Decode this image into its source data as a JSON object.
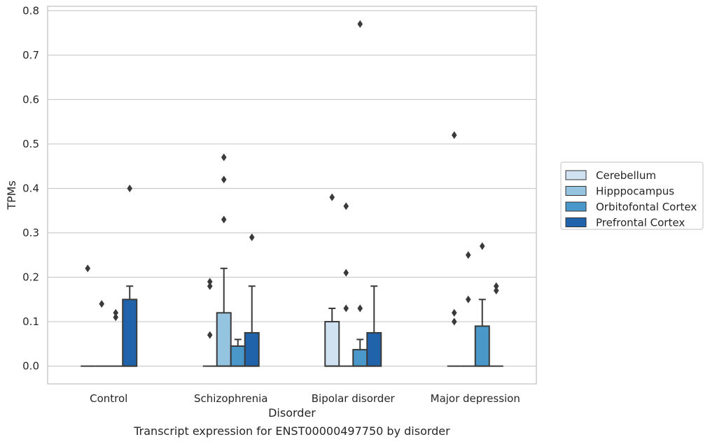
{
  "chart_data": {
    "type": "box",
    "xlabel": "Disorder",
    "ylabel": "TPMs",
    "caption": "Transcript expression for ENST00000497750 by disorder",
    "ylim": [
      -0.04,
      0.81
    ],
    "yticks": [
      0.0,
      0.1,
      0.2,
      0.3,
      0.4,
      0.5,
      0.6,
      0.7,
      0.8
    ],
    "ytick_labels": [
      "0.0",
      "0.1",
      "0.2",
      "0.3",
      "0.4",
      "0.5",
      "0.6",
      "0.7",
      "0.8"
    ],
    "grid": "horizontal",
    "legend_position": "right",
    "categories": [
      "Control",
      "Schizophrenia",
      "Bipolar disorder",
      "Major depression"
    ],
    "series": [
      {
        "name": "Cerebellum",
        "color": "#d0e1f2",
        "boxes": [
          {
            "q1": 0,
            "median": 0,
            "q3": 0,
            "whisker_low": 0,
            "whisker_high": 0,
            "outliers": [
              0.22
            ]
          },
          {
            "q1": 0,
            "median": 0,
            "q3": 0,
            "whisker_low": 0,
            "whisker_high": 0,
            "outliers": [
              0.07,
              0.18,
              0.19
            ]
          },
          {
            "q1": 0,
            "median": 0,
            "q3": 0.1,
            "whisker_low": 0,
            "whisker_high": 0.13,
            "outliers": [
              0.38
            ]
          },
          {
            "q1": 0,
            "median": 0,
            "q3": 0,
            "whisker_low": 0,
            "whisker_high": 0,
            "outliers": [
              0.1,
              0.12,
              0.52
            ]
          }
        ]
      },
      {
        "name": "Hipppocampus",
        "color": "#94c4df",
        "boxes": [
          {
            "q1": 0,
            "median": 0,
            "q3": 0,
            "whisker_low": 0,
            "whisker_high": 0,
            "outliers": [
              0.14
            ]
          },
          {
            "q1": 0,
            "median": 0,
            "q3": 0.12,
            "whisker_low": 0,
            "whisker_high": 0.22,
            "outliers": [
              0.33,
              0.42,
              0.47
            ]
          },
          {
            "q1": 0,
            "median": 0,
            "q3": 0,
            "whisker_low": 0,
            "whisker_high": 0,
            "outliers": [
              0.13,
              0.21,
              0.36
            ]
          },
          {
            "q1": 0,
            "median": 0,
            "q3": 0,
            "whisker_low": 0,
            "whisker_high": 0,
            "outliers": [
              0.15,
              0.25
            ]
          }
        ]
      },
      {
        "name": "Orbitofontal Cortex",
        "color": "#4a98c9",
        "boxes": [
          {
            "q1": 0,
            "median": 0,
            "q3": 0,
            "whisker_low": 0,
            "whisker_high": 0,
            "outliers": [
              0.11,
              0.12
            ]
          },
          {
            "q1": 0,
            "median": 0,
            "q3": 0.045,
            "whisker_low": 0,
            "whisker_high": 0.06,
            "outliers": []
          },
          {
            "q1": 0,
            "median": 0,
            "q3": 0.037,
            "whisker_low": 0,
            "whisker_high": 0.06,
            "outliers": [
              0.13,
              0.77
            ]
          },
          {
            "q1": 0,
            "median": 0,
            "q3": 0.09,
            "whisker_low": 0,
            "whisker_high": 0.15,
            "outliers": [
              0.27
            ]
          }
        ]
      },
      {
        "name": "Prefrontal Cortex",
        "color": "#2163aa",
        "boxes": [
          {
            "q1": 0,
            "median": 0,
            "q3": 0.15,
            "whisker_low": 0,
            "whisker_high": 0.18,
            "outliers": [
              0.4
            ]
          },
          {
            "q1": 0,
            "median": 0,
            "q3": 0.075,
            "whisker_low": 0,
            "whisker_high": 0.18,
            "outliers": [
              0.29
            ]
          },
          {
            "q1": 0,
            "median": 0,
            "q3": 0.075,
            "whisker_low": 0,
            "whisker_high": 0.18,
            "outliers": []
          },
          {
            "q1": 0,
            "median": 0,
            "q3": 0,
            "whisker_low": 0,
            "whisker_high": 0,
            "outliers": [
              0.17,
              0.18
            ]
          }
        ]
      }
    ]
  }
}
